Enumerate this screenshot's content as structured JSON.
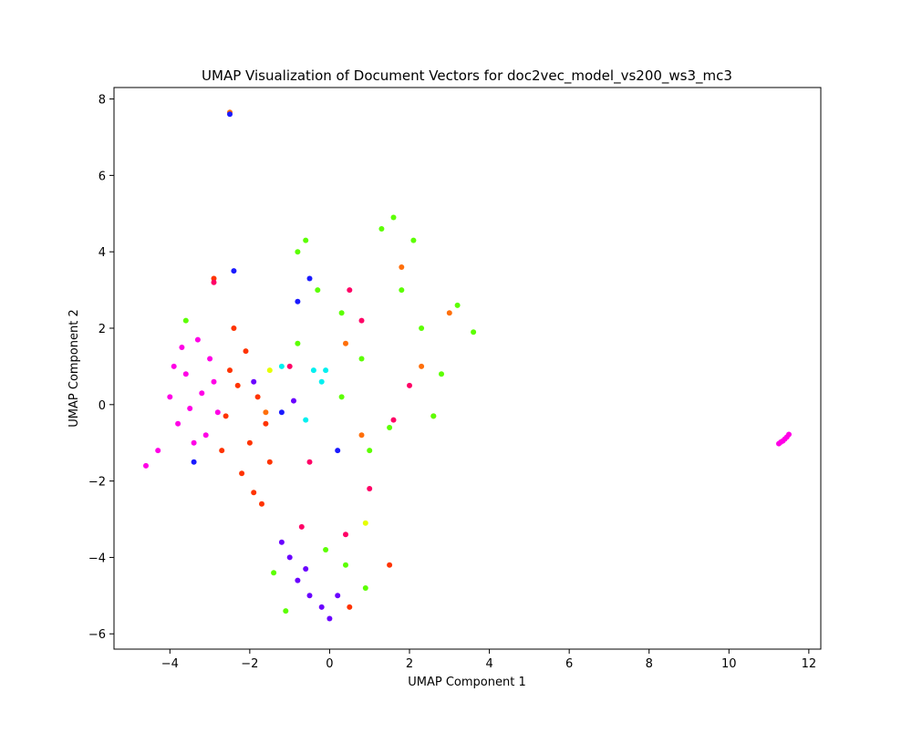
{
  "chart_data": {
    "type": "scatter",
    "title": "UMAP Visualization of Document Vectors for doc2vec_model_vs200_ws3_mc3",
    "xlabel": "UMAP Component 1",
    "ylabel": "UMAP Component 2",
    "xlim": [
      -5.4,
      12.3
    ],
    "ylim": [
      -6.4,
      8.3
    ],
    "xticks": [
      -4,
      -2,
      0,
      2,
      4,
      6,
      8,
      10,
      12
    ],
    "yticks": [
      -6,
      -4,
      -2,
      0,
      2,
      4,
      6,
      8
    ],
    "grid": false,
    "legend": "none",
    "colors": {
      "magenta": "#ff00e6",
      "red_orange": "#ff3300",
      "orange": "#ff6f0a",
      "green": "#5cff00",
      "purple": "#6a00ff",
      "cyan": "#00f0f0",
      "blue": "#1a1aff",
      "crimson": "#ff0066",
      "yellow": "#e6ff00"
    },
    "clusters": [
      {
        "color": "magenta",
        "points": [
          [
            -4.0,
            0.2
          ],
          [
            -3.8,
            -0.5
          ],
          [
            -3.6,
            0.8
          ],
          [
            -3.4,
            -1.0
          ],
          [
            -3.2,
            0.3
          ],
          [
            -3.0,
            1.2
          ],
          [
            -2.8,
            -0.2
          ],
          [
            -3.9,
            1.0
          ],
          [
            -4.3,
            -1.2
          ],
          [
            -4.6,
            -1.6
          ],
          [
            -3.5,
            -0.1
          ],
          [
            -3.1,
            -0.8
          ],
          [
            -2.9,
            0.6
          ],
          [
            -3.7,
            1.5
          ],
          [
            -3.3,
            1.7
          ]
        ]
      },
      {
        "color": "red_orange",
        "points": [
          [
            -2.6,
            -0.3
          ],
          [
            -2.3,
            0.5
          ],
          [
            -2.0,
            -1.0
          ],
          [
            -1.8,
            0.2
          ],
          [
            -2.2,
            -1.8
          ],
          [
            -1.9,
            -2.3
          ],
          [
            -2.5,
            0.9
          ],
          [
            -1.6,
            -0.5
          ],
          [
            -2.4,
            2.0
          ],
          [
            -2.1,
            1.4
          ],
          [
            -1.5,
            -1.5
          ],
          [
            -2.7,
            -1.2
          ],
          [
            -1.7,
            -2.6
          ],
          [
            -2.9,
            3.3
          ],
          [
            0.5,
            -5.3
          ],
          [
            1.5,
            -4.2
          ]
        ]
      },
      {
        "color": "orange",
        "points": [
          [
            -2.5,
            7.65
          ],
          [
            0.8,
            -0.8
          ],
          [
            2.3,
            1.0
          ],
          [
            1.8,
            3.6
          ],
          [
            3.0,
            2.4
          ],
          [
            2.6,
            -0.3
          ],
          [
            -1.6,
            -0.2
          ],
          [
            0.4,
            1.6
          ]
        ]
      },
      {
        "color": "green",
        "points": [
          [
            -0.8,
            4.0
          ],
          [
            -0.3,
            3.0
          ],
          [
            0.3,
            2.4
          ],
          [
            0.8,
            1.2
          ],
          [
            1.3,
            4.6
          ],
          [
            1.8,
            3.0
          ],
          [
            2.3,
            2.0
          ],
          [
            2.8,
            0.8
          ],
          [
            3.2,
            2.6
          ],
          [
            3.6,
            1.9
          ],
          [
            1.5,
            -0.6
          ],
          [
            0.3,
            0.2
          ],
          [
            2.6,
            -0.3
          ],
          [
            1.0,
            -1.2
          ],
          [
            -0.8,
            1.6
          ],
          [
            0.4,
            -4.2
          ],
          [
            0.9,
            -4.8
          ],
          [
            -0.1,
            -3.8
          ],
          [
            -1.4,
            -4.4
          ],
          [
            -1.1,
            -5.4
          ],
          [
            -3.6,
            2.2
          ],
          [
            1.6,
            4.9
          ],
          [
            -0.6,
            4.3
          ],
          [
            2.1,
            4.3
          ]
        ]
      },
      {
        "color": "purple",
        "points": [
          [
            -1.0,
            -4.0
          ],
          [
            -0.8,
            -4.6
          ],
          [
            -0.5,
            -5.0
          ],
          [
            -0.2,
            -5.3
          ],
          [
            0.0,
            -5.6
          ],
          [
            -1.2,
            -3.6
          ],
          [
            -0.6,
            -4.3
          ],
          [
            0.2,
            -5.0
          ],
          [
            -1.9,
            0.6
          ],
          [
            -0.9,
            0.1
          ]
        ]
      },
      {
        "color": "cyan",
        "points": [
          [
            -0.4,
            0.9
          ],
          [
            -0.1,
            0.9
          ],
          [
            -0.6,
            -0.4
          ],
          [
            -0.2,
            0.6
          ],
          [
            -1.2,
            1.0
          ]
        ]
      },
      {
        "color": "blue",
        "points": [
          [
            -2.5,
            7.6
          ],
          [
            -2.4,
            3.5
          ],
          [
            -0.8,
            2.7
          ],
          [
            -1.2,
            -0.2
          ],
          [
            0.2,
            -1.2
          ],
          [
            -3.4,
            -1.5
          ],
          [
            -0.5,
            3.3
          ]
        ]
      },
      {
        "color": "crimson",
        "points": [
          [
            -1.0,
            1.0
          ],
          [
            0.5,
            3.0
          ],
          [
            -0.5,
            -1.5
          ],
          [
            1.0,
            -2.2
          ],
          [
            -2.9,
            3.2
          ],
          [
            0.8,
            2.2
          ],
          [
            2.0,
            0.5
          ],
          [
            -0.7,
            -3.2
          ],
          [
            0.4,
            -3.4
          ],
          [
            1.6,
            -0.4
          ]
        ]
      },
      {
        "color": "yellow",
        "points": [
          [
            -1.5,
            0.9
          ],
          [
            0.9,
            -3.1
          ]
        ]
      },
      {
        "color": "magenta",
        "points": [
          [
            11.25,
            -1.02
          ],
          [
            11.35,
            -0.95
          ],
          [
            11.45,
            -0.85
          ],
          [
            11.5,
            -0.78
          ],
          [
            11.3,
            -0.98
          ],
          [
            11.4,
            -0.9
          ]
        ]
      }
    ]
  }
}
